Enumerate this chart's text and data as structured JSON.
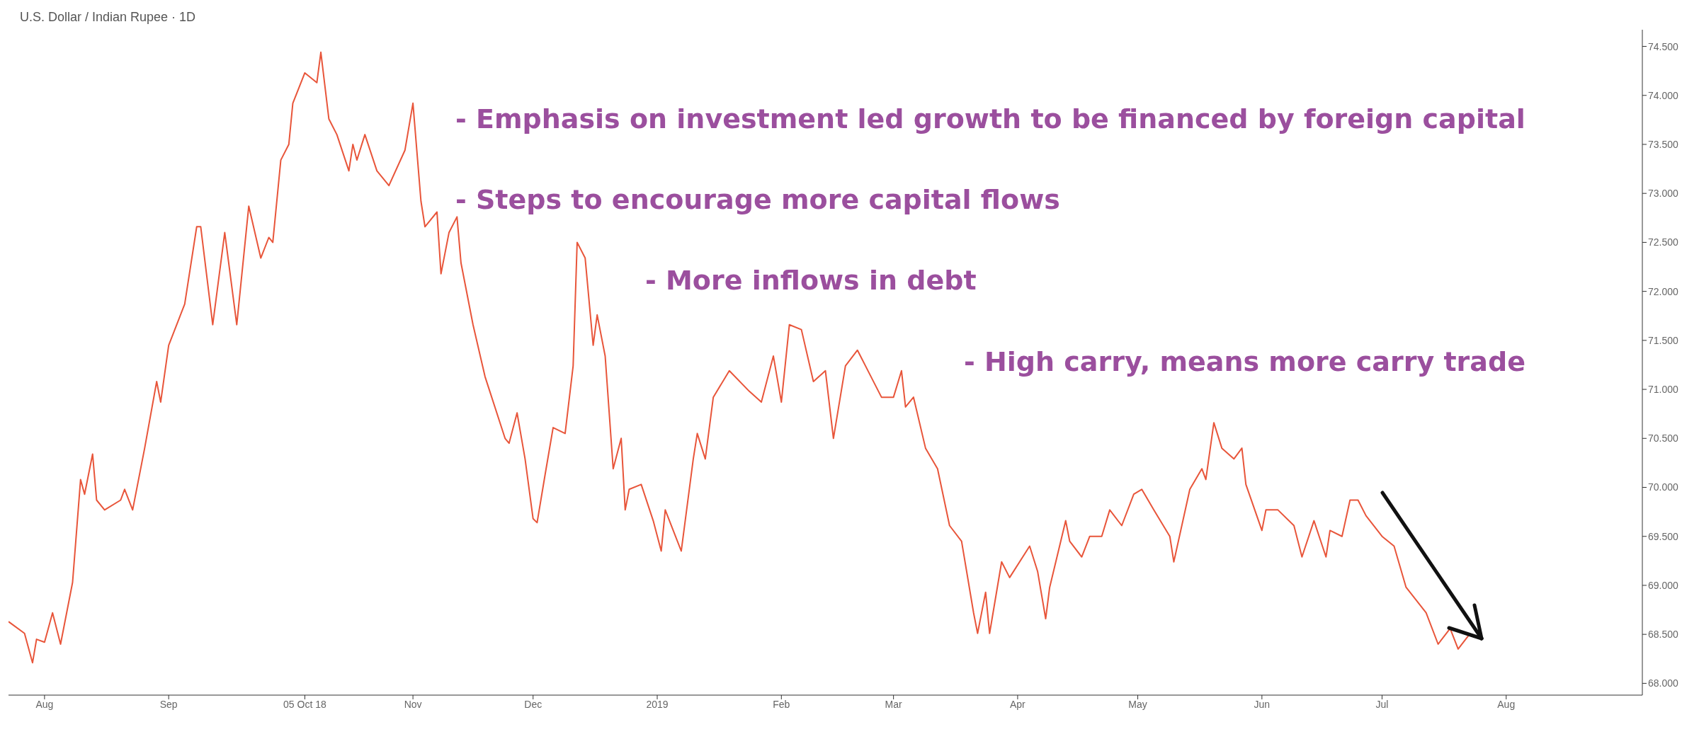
{
  "chart_data": {
    "type": "line",
    "title": "U.S. Dollar / Indian Rupee · 1D",
    "annotations": [
      "- Emphasis on investment led growth to be financed by foreign capital",
      "- Steps to encourage more capital flows",
      "- More inflows in debt",
      "- High carry, means more carry trade"
    ],
    "x": [
      "2018-07-23",
      "2018-07-27",
      "2018-07-29",
      "2018-07-30",
      "2018-08-01",
      "2018-08-03",
      "2018-08-05",
      "2018-08-08",
      "2018-08-10",
      "2018-08-11",
      "2018-08-13",
      "2018-08-14",
      "2018-08-16",
      "2018-08-20",
      "2018-08-21",
      "2018-08-23",
      "2018-08-26",
      "2018-08-29",
      "2018-08-30",
      "2018-09-01",
      "2018-09-05",
      "2018-09-08",
      "2018-09-09",
      "2018-09-12",
      "2018-09-15",
      "2018-09-18",
      "2018-09-21",
      "2018-09-24",
      "2018-09-26",
      "2018-09-27",
      "2018-09-29",
      "2018-10-01",
      "2018-10-02",
      "2018-10-05",
      "2018-10-08",
      "2018-10-09",
      "2018-10-11",
      "2018-10-13",
      "2018-10-16",
      "2018-10-17",
      "2018-10-18",
      "2018-10-20",
      "2018-10-23",
      "2018-10-26",
      "2018-10-30",
      "2018-11-01",
      "2018-11-03",
      "2018-11-04",
      "2018-11-07",
      "2018-11-08",
      "2018-11-10",
      "2018-11-12",
      "2018-11-13",
      "2018-11-16",
      "2018-11-19",
      "2018-11-24",
      "2018-11-25",
      "2018-11-27",
      "2018-11-29",
      "2018-12-01",
      "2018-12-02",
      "2018-12-04",
      "2018-12-06",
      "2018-12-09",
      "2018-12-11",
      "2018-12-12",
      "2018-12-14",
      "2018-12-16",
      "2018-12-17",
      "2018-12-19",
      "2018-12-21",
      "2018-12-23",
      "2018-12-24",
      "2018-12-25",
      "2018-12-28",
      "2018-12-31",
      "2019-01-02",
      "2019-01-03",
      "2019-01-07",
      "2019-01-10",
      "2019-01-11",
      "2019-01-13",
      "2019-01-15",
      "2019-01-19",
      "2019-01-24",
      "2019-01-27",
      "2019-01-30",
      "2019-02-01",
      "2019-02-03",
      "2019-02-06",
      "2019-02-09",
      "2019-02-12",
      "2019-02-14",
      "2019-02-17",
      "2019-02-20",
      "2019-02-22",
      "2019-02-26",
      "2019-03-01",
      "2019-03-03",
      "2019-03-04",
      "2019-03-06",
      "2019-03-09",
      "2019-03-12",
      "2019-03-15",
      "2019-03-18",
      "2019-03-21",
      "2019-03-22",
      "2019-03-24",
      "2019-03-25",
      "2019-03-28",
      "2019-03-30",
      "2019-04-04",
      "2019-04-06",
      "2019-04-08",
      "2019-04-09",
      "2019-04-13",
      "2019-04-14",
      "2019-04-17",
      "2019-04-19",
      "2019-04-22",
      "2019-04-24",
      "2019-04-27",
      "2019-04-30",
      "2019-05-02",
      "2019-05-05",
      "2019-05-09",
      "2019-05-10",
      "2019-05-14",
      "2019-05-17",
      "2019-05-18",
      "2019-05-20",
      "2019-05-22",
      "2019-05-25",
      "2019-05-27",
      "2019-05-28",
      "2019-06-01",
      "2019-06-02",
      "2019-06-05",
      "2019-06-09",
      "2019-06-11",
      "2019-06-14",
      "2019-06-17",
      "2019-06-18",
      "2019-06-21",
      "2019-06-23",
      "2019-06-25",
      "2019-06-27",
      "2019-07-01",
      "2019-07-04",
      "2019-07-07",
      "2019-07-12",
      "2019-07-15",
      "2019-07-18",
      "2019-07-20",
      "2019-07-23"
    ],
    "series": [
      {
        "color": "#e8553a",
        "values": [
          68.63,
          68.51,
          68.21,
          68.45,
          68.42,
          68.72,
          68.4,
          69.03,
          70.08,
          69.93,
          70.34,
          69.87,
          69.77,
          69.87,
          69.98,
          69.77,
          70.4,
          71.08,
          70.87,
          71.45,
          71.87,
          72.66,
          72.66,
          71.66,
          72.6,
          71.66,
          72.87,
          72.34,
          72.55,
          72.5,
          73.34,
          73.5,
          73.92,
          74.23,
          74.13,
          74.44,
          73.76,
          73.6,
          73.23,
          73.5,
          73.34,
          73.6,
          73.23,
          73.08,
          73.44,
          73.92,
          72.92,
          72.66,
          72.81,
          72.18,
          72.6,
          72.76,
          72.29,
          71.66,
          71.13,
          70.5,
          70.45,
          70.76,
          70.29,
          69.68,
          69.64,
          70.13,
          70.61,
          70.55,
          71.24,
          72.5,
          72.34,
          71.45,
          71.76,
          71.34,
          70.19,
          70.5,
          69.77,
          69.98,
          70.03,
          69.66,
          69.35,
          69.77,
          69.35,
          70.29,
          70.55,
          70.29,
          70.92,
          71.19,
          70.98,
          70.87,
          71.34,
          70.87,
          71.66,
          71.61,
          71.08,
          71.19,
          70.5,
          71.24,
          71.4,
          71.24,
          70.92,
          70.92,
          71.19,
          70.82,
          70.92,
          70.4,
          70.19,
          69.61,
          69.45,
          68.72,
          68.51,
          68.93,
          68.51,
          69.24,
          69.08,
          69.4,
          69.14,
          68.66,
          68.98,
          69.66,
          69.45,
          69.29,
          69.5,
          69.5,
          69.77,
          69.61,
          69.93,
          69.98,
          69.77,
          69.5,
          69.24,
          69.98,
          70.19,
          70.08,
          70.66,
          70.4,
          70.29,
          70.4,
          70.03,
          69.56,
          69.77,
          69.77,
          69.61,
          69.29,
          69.66,
          69.29,
          69.56,
          69.5,
          69.87,
          69.87,
          69.71,
          69.5,
          69.4,
          68.98,
          68.72,
          68.4,
          68.56,
          68.35,
          68.51
        ]
      }
    ],
    "xlim": [
      "2018-07-23",
      "2019-09-04"
    ],
    "xticks": [
      {
        "value": "2018-08-01",
        "label": "Aug"
      },
      {
        "value": "2018-09-01",
        "label": "Sep"
      },
      {
        "value": "2018-10-05",
        "label": "05 Oct 18"
      },
      {
        "value": "2018-11-01",
        "label": "Nov"
      },
      {
        "value": "2018-12-01",
        "label": "Dec"
      },
      {
        "value": "2019-01-01",
        "label": "2019"
      },
      {
        "value": "2019-02-01",
        "label": "Feb"
      },
      {
        "value": "2019-03-01",
        "label": "Mar"
      },
      {
        "value": "2019-04-01",
        "label": "Apr"
      },
      {
        "value": "2019-05-01",
        "label": "May"
      },
      {
        "value": "2019-06-01",
        "label": "Jun"
      },
      {
        "value": "2019-07-01",
        "label": "Jul"
      },
      {
        "value": "2019-08-01",
        "label": "Aug"
      }
    ],
    "ylim": [
      67.88,
      74.67
    ],
    "yticks": [
      {
        "value": 68,
        "label": "68.000"
      },
      {
        "value": 68.5,
        "label": "68.500"
      },
      {
        "value": 69,
        "label": "69.000"
      },
      {
        "value": 69.5,
        "label": "69.500"
      },
      {
        "value": 70,
        "label": "70.000"
      },
      {
        "value": 70.5,
        "label": "70.500"
      },
      {
        "value": 71,
        "label": "71.000"
      },
      {
        "value": 71.5,
        "label": "71.500"
      },
      {
        "value": 72,
        "label": "72.000"
      },
      {
        "value": 72.5,
        "label": "72.500"
      },
      {
        "value": 73,
        "label": "73.000"
      },
      {
        "value": 73.5,
        "label": "73.500"
      },
      {
        "value": 74,
        "label": "74.000"
      },
      {
        "value": 74.5,
        "label": "74.500"
      }
    ],
    "grid": false,
    "legend": false,
    "marker": "none",
    "line_style": "solid"
  }
}
